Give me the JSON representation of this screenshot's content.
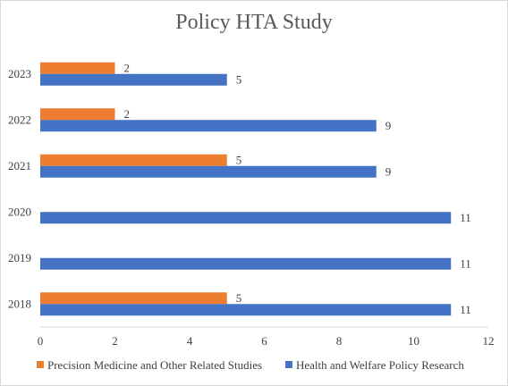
{
  "chart_data": {
    "type": "bar",
    "orientation": "horizontal",
    "title": "Policy HTA Study",
    "categories": [
      "2023",
      "2022",
      "2021",
      "2020",
      "2019",
      "2018"
    ],
    "series": [
      {
        "name": "Precision Medicine and Other Related Studies",
        "color": "#ED7D31",
        "values": [
          2,
          2,
          5,
          null,
          null,
          5
        ]
      },
      {
        "name": "Health and Welfare Policy Research",
        "color": "#4472C4",
        "values": [
          5,
          9,
          9,
          11,
          11,
          11
        ]
      }
    ],
    "xlim": [
      0,
      12
    ],
    "x_ticks": [
      0,
      2,
      4,
      6,
      8,
      10,
      12
    ],
    "grid": false,
    "legend_position": "bottom"
  }
}
